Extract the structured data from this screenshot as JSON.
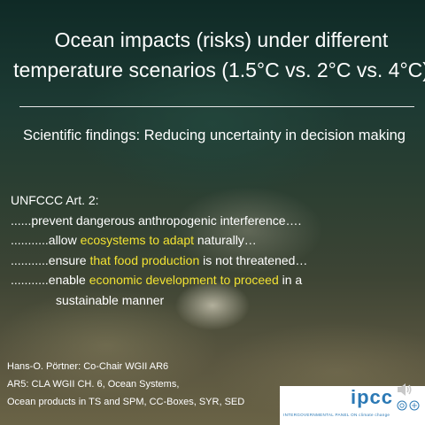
{
  "slide": {
    "title": "Ocean impacts (risks) under different\ntemperature scenarios (1.5°C vs. 2°C vs. 4°C)",
    "subtitle": "Scientific findings: Reducing uncertainty in decision making"
  },
  "body": {
    "heading": "UNFCCC Art. 2:",
    "line1": "......prevent dangerous anthropogenic interference….",
    "line2_pre": "...........allow ",
    "line2_hl": "ecosystems to adapt",
    "line2_post": " naturally…",
    "line3_pre": "...........ensure ",
    "line3_hl": "that food production",
    "line3_post": " is not threatened…",
    "line4_pre": "...........enable ",
    "line4_hl": "economic development to proceed",
    "line4_post": " in a",
    "line5": "sustainable manner"
  },
  "credits": {
    "line1": "Hans-O. Pörtner: Co-Chair WGII AR6",
    "line2": "AR5: CLA WGII CH. 6, Ocean Systems,",
    "line3": "Ocean products in TS and SPM, CC-Boxes, SYR, SED"
  },
  "logo": {
    "name": "ipcc",
    "tagline": "INTERGOVERNMENTAL PANEL ON climate change"
  },
  "colors": {
    "highlight": "#f2e233",
    "text": "#ffffff",
    "logo_blue": "#2b79b5"
  }
}
